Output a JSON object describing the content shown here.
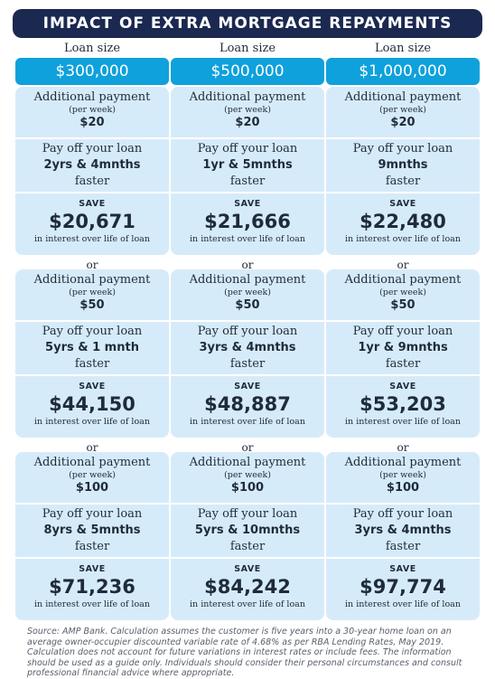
{
  "title": "IMPACT OF EXTRA MORTGAGE REPAYMENTS",
  "labels": {
    "loan_size": "Loan size",
    "additional_payment": "Additional payment",
    "per_week": "(per week)",
    "pay_off": "Pay off your loan",
    "faster": "faster",
    "save": "SAVE",
    "interest_note": "in interest over life of loan",
    "or": "or"
  },
  "columns": [
    {
      "loan": "$300,000",
      "scenarios": [
        {
          "payment": "$20",
          "payoff": "2yrs & 4mnths",
          "saving": "$20,671"
        },
        {
          "payment": "$50",
          "payoff": "5yrs & 1 mnth",
          "saving": "$44,150"
        },
        {
          "payment": "$100",
          "payoff": "8yrs & 5mnths",
          "saving": "$71,236"
        }
      ]
    },
    {
      "loan": "$500,000",
      "scenarios": [
        {
          "payment": "$20",
          "payoff": "1yr & 5mnths",
          "saving": "$21,666"
        },
        {
          "payment": "$50",
          "payoff": "3yrs & 4mnths",
          "saving": "$48,887"
        },
        {
          "payment": "$100",
          "payoff": "5yrs & 10mnths",
          "saving": "$84,242"
        }
      ]
    },
    {
      "loan": "$1,000,000",
      "scenarios": [
        {
          "payment": "$20",
          "payoff": "9mnths",
          "saving": "$22,480"
        },
        {
          "payment": "$50",
          "payoff": "1yr & 9mnths",
          "saving": "$53,203"
        },
        {
          "payment": "$100",
          "payoff": "3yrs & 4mnths",
          "saving": "$97,774"
        }
      ]
    }
  ],
  "source": "Source: AMP Bank. Calculation assumes the customer is five years into a 30-year home loan on an average owner-occupier discounted variable rate of 4.68% as per RBA Lending Rates, May 2019. Calculation does not account for future variations in interest rates or include fees. The information should be used as a guide only. Individuals should consider their personal circumstances and consult professional financial advice where appropriate.",
  "colors": {
    "title_bg": "#1b2850",
    "loan_bg": "#0ea1dc",
    "card_bg": "#d6ebf9"
  }
}
